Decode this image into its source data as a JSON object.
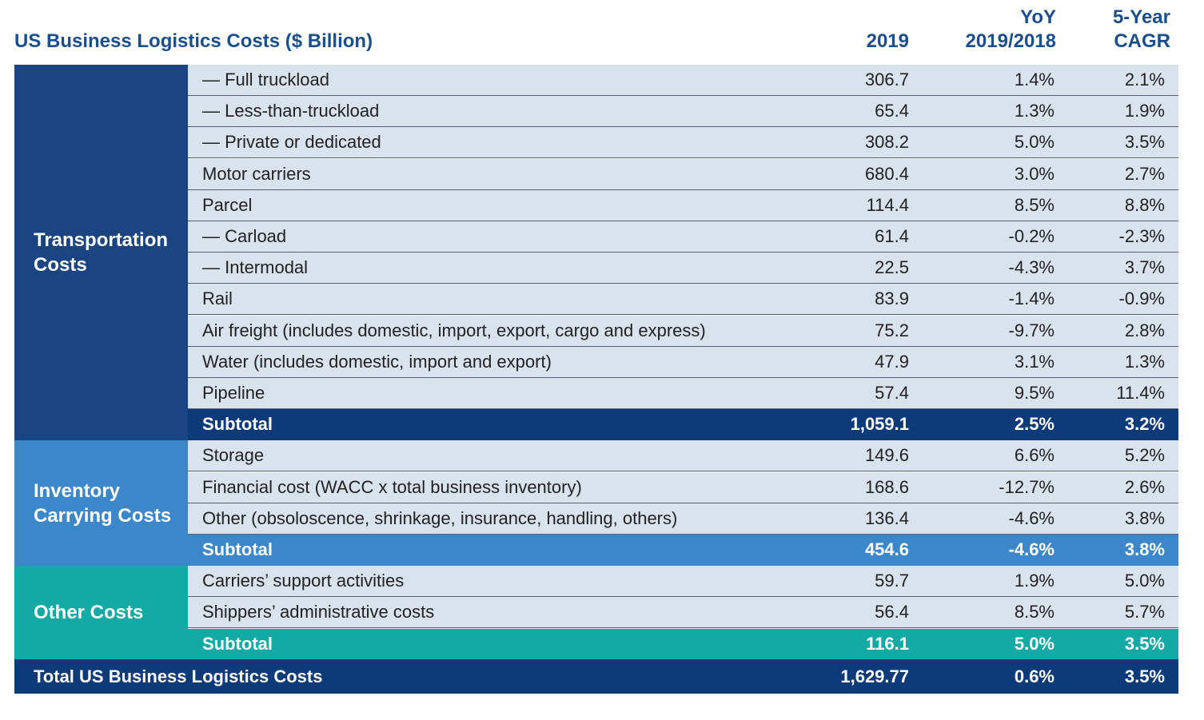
{
  "chart_data": {
    "type": "table",
    "title": "US Business Logistics Costs ($ Billion)",
    "columns": [
      "2019",
      "YoY\n2019/2018",
      "5-Year\nCAGR"
    ],
    "column_header_lines": [
      [
        "2019"
      ],
      [
        "YoY",
        "2019/2018"
      ],
      [
        "5-Year",
        "CAGR"
      ]
    ],
    "groups": [
      {
        "name": "Transportation Costs",
        "name_lines": [
          "Transportation",
          "Costs"
        ],
        "color": "#1b4582",
        "subtotal_color": "#0d3a78",
        "rows": [
          {
            "label": "— Full truckload",
            "value": "306.7",
            "yoy": "1.4%",
            "cagr": "2.1%"
          },
          {
            "label": "— Less-than-truckload",
            "value": "65.4",
            "yoy": "1.3%",
            "cagr": "1.9%"
          },
          {
            "label": "— Private or dedicated",
            "value": "308.2",
            "yoy": "5.0%",
            "cagr": "3.5%"
          },
          {
            "label": "Motor carriers",
            "value": "680.4",
            "yoy": "3.0%",
            "cagr": "2.7%"
          },
          {
            "label": "Parcel",
            "value": "114.4",
            "yoy": "8.5%",
            "cagr": "8.8%"
          },
          {
            "label": "— Carload",
            "value": "61.4",
            "yoy": "-0.2%",
            "cagr": "-2.3%"
          },
          {
            "label": "— Intermodal",
            "value": "22.5",
            "yoy": "-4.3%",
            "cagr": "3.7%"
          },
          {
            "label": "Rail",
            "value": "83.9",
            "yoy": "-1.4%",
            "cagr": "-0.9%"
          },
          {
            "label": "Air freight (includes domestic, import, export, cargo and express)",
            "value": "75.2",
            "yoy": "-9.7%",
            "cagr": "2.8%"
          },
          {
            "label": "Water (includes domestic, import and export)",
            "value": "47.9",
            "yoy": "3.1%",
            "cagr": "1.3%"
          },
          {
            "label": "Pipeline",
            "value": "57.4",
            "yoy": "9.5%",
            "cagr": "11.4%"
          }
        ],
        "subtotal": {
          "label": "Subtotal",
          "value": "1,059.1",
          "yoy": "2.5%",
          "cagr": "3.2%"
        }
      },
      {
        "name": "Inventory Carrying Costs",
        "name_lines": [
          "Inventory",
          "Carrying Costs"
        ],
        "color": "#3c87c9",
        "subtotal_color": "#3c87c9",
        "rows": [
          {
            "label": "Storage",
            "value": "149.6",
            "yoy": "6.6%",
            "cagr": "5.2%"
          },
          {
            "label": "Financial cost (WACC x total business inventory)",
            "value": "168.6",
            "yoy": "-12.7%",
            "cagr": "2.6%"
          },
          {
            "label": "Other (obsoloscence, shrinkage, insurance, handling, others)",
            "value": "136.4",
            "yoy": "-4.6%",
            "cagr": "3.8%"
          }
        ],
        "subtotal": {
          "label": "Subtotal",
          "value": "454.6",
          "yoy": "-4.6%",
          "cagr": "3.8%"
        }
      },
      {
        "name": "Other Costs",
        "name_lines": [
          "Other Costs"
        ],
        "color": "#13a9a5",
        "subtotal_color": "#13a9a5",
        "rows": [
          {
            "label": "Carriers’ support activities",
            "value": "59.7",
            "yoy": "1.9%",
            "cagr": "5.0%"
          },
          {
            "label": "Shippers’ administrative costs",
            "value": "56.4",
            "yoy": "8.5%",
            "cagr": "5.7%"
          }
        ],
        "subtotal": {
          "label": "Subtotal",
          "value": "116.1",
          "yoy": "5.0%",
          "cagr": "3.5%"
        }
      }
    ],
    "total": {
      "label": "Total US Business Logistics Costs",
      "value": "1,629.77",
      "yoy": "0.6%",
      "cagr": "3.5%",
      "color": "#0d3a78"
    }
  }
}
